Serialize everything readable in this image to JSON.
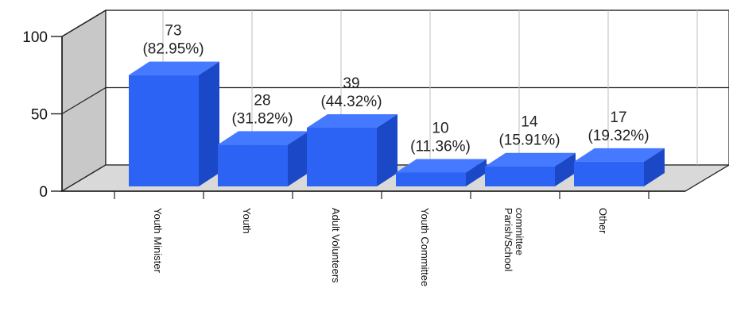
{
  "chart_data": {
    "type": "bar",
    "categories": [
      "Youth Minister",
      "Youth",
      "Adult Volunteers",
      "Youth Committee",
      "Parish/School committee",
      "Other"
    ],
    "category_lines": [
      [
        "Youth Minister"
      ],
      [
        "Youth"
      ],
      [
        "Adult Volunteers"
      ],
      [
        "Youth Committee"
      ],
      [
        "Parish/School",
        "committee"
      ],
      [
        "Other"
      ]
    ],
    "values": [
      73,
      28,
      39,
      10,
      14,
      17
    ],
    "percent_labels": [
      "(82.95%)",
      "(31.82%)",
      "(44.32%)",
      "(11.36%)",
      "(15.91%)",
      "(19.32%)"
    ],
    "value_labels": [
      "73",
      "28",
      "39",
      "10",
      "14",
      "17"
    ],
    "y_ticks": [
      "0",
      "50",
      "100"
    ],
    "y_tick_values": [
      0,
      50,
      100
    ],
    "ylim": [
      0,
      100
    ],
    "style": "3d",
    "grid": true,
    "colors": {
      "bar_front": "#2d63f4",
      "bar_top": "#4579ff",
      "bar_side": "#1b48c7",
      "wall": "#c8c8c8",
      "grid": "#bdbdbd"
    }
  }
}
